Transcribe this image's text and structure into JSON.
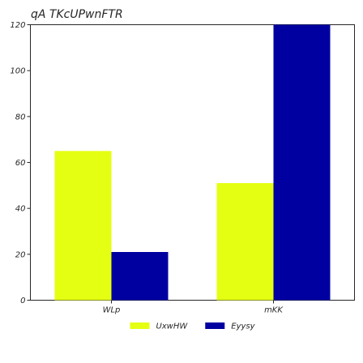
{
  "chart_data": {
    "type": "bar",
    "title": "qA TKcUPwnFTR",
    "xlabel": "",
    "ylabel": "",
    "categories": [
      "WLp",
      "mKK"
    ],
    "series": [
      {
        "name": "UxwHW",
        "values": [
          65,
          51
        ],
        "color": "#e5ff12"
      },
      {
        "name": "Eyysy",
        "values": [
          21,
          120
        ],
        "color": "#0000a0"
      }
    ],
    "ylim": [
      0,
      120
    ],
    "yticks": [
      0,
      20,
      40,
      60,
      80,
      100,
      120
    ],
    "grid": false,
    "legend_position": "bottom-center"
  }
}
